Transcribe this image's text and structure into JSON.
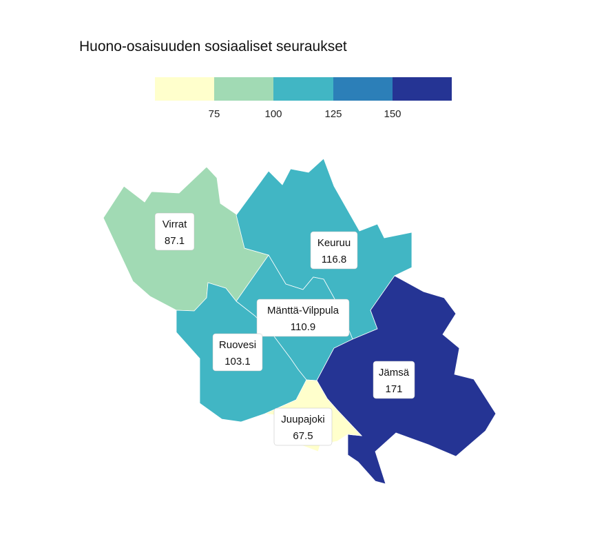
{
  "title": "Huono-osaisuuden sosiaaliset seuraukset",
  "legend": {
    "ticks": [
      "75",
      "100",
      "125",
      "150"
    ],
    "bins": [
      {
        "color": "#ffffcc"
      },
      {
        "color": "#a1dab4"
      },
      {
        "color": "#41b6c4"
      },
      {
        "color": "#2c7fb8"
      },
      {
        "color": "#253494"
      }
    ]
  },
  "chart_data": {
    "type": "choropleth",
    "title": "Huono-osaisuuden sosiaaliset seuraukset",
    "breaks": [
      75,
      100,
      125,
      150
    ],
    "regions": [
      {
        "name": "Virrat",
        "value": "87.1",
        "color": "#a1dab4"
      },
      {
        "name": "Keuruu",
        "value": "116.8",
        "color": "#41b6c4"
      },
      {
        "name": "Mänttä-Vilppula",
        "value": "110.9",
        "color": "#41b6c4"
      },
      {
        "name": "Ruovesi",
        "value": "103.1",
        "color": "#41b6c4"
      },
      {
        "name": "Jämsä",
        "value": "171",
        "color": "#253494"
      },
      {
        "name": "Juupajoki",
        "value": "67.5",
        "color": "#ffffcc"
      }
    ]
  }
}
